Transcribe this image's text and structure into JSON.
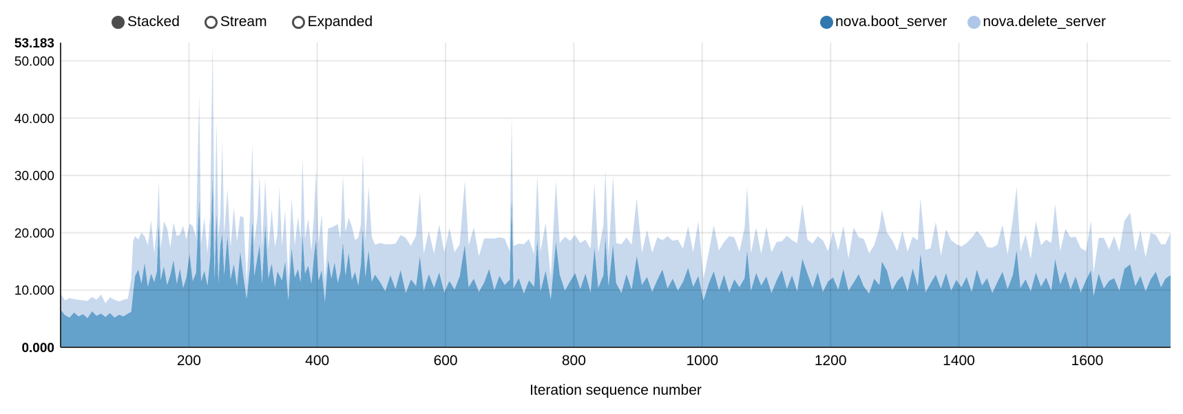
{
  "controls": {
    "items": [
      {
        "label": "Stacked",
        "selected": true
      },
      {
        "label": "Stream",
        "selected": false
      },
      {
        "label": "Expanded",
        "selected": false
      }
    ]
  },
  "legend": {
    "items": [
      {
        "label": "nova.boot_server",
        "color": "#3178af"
      },
      {
        "label": "nova.delete_server",
        "color": "#aec7e8"
      }
    ]
  },
  "chart_data": {
    "type": "area",
    "stacked": true,
    "title": "",
    "xlabel": "Iteration sequence number",
    "ylabel": "",
    "xlim": [
      0,
      1730
    ],
    "ylim": [
      0,
      53.183
    ],
    "grid": true,
    "legend_position": "top-right",
    "x_ticks": [
      200,
      400,
      600,
      800,
      1000,
      1200,
      1400,
      1600
    ],
    "y_ticks": [
      {
        "value": 0,
        "label": "0.000",
        "bold": true,
        "grid": false
      },
      {
        "value": 10,
        "label": "10.000",
        "bold": false,
        "grid": true
      },
      {
        "value": 20,
        "label": "20.000",
        "bold": false,
        "grid": true
      },
      {
        "value": 30,
        "label": "30.000",
        "bold": false,
        "grid": true
      },
      {
        "value": 40,
        "label": "40.000",
        "bold": false,
        "grid": true
      },
      {
        "value": 50,
        "label": "50.000",
        "bold": false,
        "grid": true
      },
      {
        "value": 53.183,
        "label": "53.183",
        "bold": true,
        "grid": false
      }
    ],
    "series_names": [
      "nova.boot_server",
      "nova.delete_server"
    ],
    "area_colors": [
      "#64a1cb",
      "#c8d9ee"
    ],
    "max_total": 53.183,
    "points_format": [
      "iteration",
      "nova.boot_server",
      "nova.delete_server"
    ],
    "points": [
      [
        0,
        6.6,
        2.8
      ],
      [
        7,
        5.6,
        2.6
      ],
      [
        14,
        5.2,
        3.4
      ],
      [
        21,
        6.1,
        2.3
      ],
      [
        28,
        5.4,
        2.9
      ],
      [
        35,
        5.8,
        2.4
      ],
      [
        42,
        5.1,
        3.0
      ],
      [
        49,
        6.3,
        2.5
      ],
      [
        56,
        5.5,
        2.8
      ],
      [
        63,
        5.9,
        3.3
      ],
      [
        70,
        5.3,
        2.4
      ],
      [
        77,
        6.0,
        2.7
      ],
      [
        84,
        5.2,
        3.1
      ],
      [
        91,
        5.7,
        2.3
      ],
      [
        98,
        5.4,
        2.9
      ],
      [
        105,
        5.9,
        2.6
      ],
      [
        110,
        6.2,
        5.8
      ],
      [
        113,
        9.5,
        9.0
      ],
      [
        116,
        12.4,
        7.0
      ],
      [
        121,
        13.6,
        5.2
      ],
      [
        126,
        11.2,
        8.8
      ],
      [
        131,
        14.8,
        4.6
      ],
      [
        136,
        10.6,
        7.2
      ],
      [
        141,
        12.9,
        9.3
      ],
      [
        146,
        11.4,
        5.0
      ],
      [
        150,
        13.2,
        7.6
      ],
      [
        153,
        22.0,
        7.0
      ],
      [
        156,
        11.8,
        5.4
      ],
      [
        161,
        14.2,
        7.8
      ],
      [
        166,
        10.9,
        9.9
      ],
      [
        171,
        12.6,
        4.8
      ],
      [
        176,
        15.3,
        6.5
      ],
      [
        181,
        11.1,
        8.3
      ],
      [
        186,
        13.8,
        5.9
      ],
      [
        191,
        10.4,
        10.8
      ],
      [
        196,
        12.2,
        6.6
      ],
      [
        201,
        16.4,
        5.2
      ],
      [
        206,
        11.6,
        9.6
      ],
      [
        211,
        13.0,
        6.2
      ],
      [
        216,
        26.0,
        18.0
      ],
      [
        219,
        11.5,
        6.7
      ],
      [
        224,
        13.4,
        9.2
      ],
      [
        229,
        10.8,
        5.6
      ],
      [
        233,
        15.6,
        7.4
      ],
      [
        237,
        30.0,
        23.2
      ],
      [
        240,
        12.0,
        6.4
      ],
      [
        243,
        24.0,
        15.5
      ],
      [
        246,
        11.3,
        8.1
      ],
      [
        249,
        17.8,
        5.3
      ],
      [
        252,
        20.0,
        16.0
      ],
      [
        255,
        12.7,
        6.9
      ],
      [
        260,
        19.6,
        8.0
      ],
      [
        265,
        11.9,
        5.5
      ],
      [
        270,
        14.6,
        9.8
      ],
      [
        275,
        10.7,
        7.7
      ],
      [
        280,
        16.8,
        6.1
      ],
      [
        285,
        12.3,
        10.4
      ],
      [
        290,
        8.5,
        2.5
      ],
      [
        295,
        13.9,
        8.6
      ],
      [
        299,
        22.5,
        13.0
      ],
      [
        302,
        12.5,
        5.8
      ],
      [
        307,
        15.9,
        7.1
      ],
      [
        310,
        18.0,
        12.0
      ],
      [
        314,
        11.2,
        6.3
      ],
      [
        319,
        21.5,
        7.9
      ],
      [
        324,
        12.1,
        5.1
      ],
      [
        329,
        14.7,
        9.4
      ],
      [
        334,
        10.5,
        7.0
      ],
      [
        338,
        13.3,
        6.5
      ],
      [
        341,
        12.6,
        15.4
      ],
      [
        345,
        11.7,
        5.9
      ],
      [
        350,
        15.1,
        8.7
      ],
      [
        355,
        8.2,
        3.3
      ],
      [
        360,
        17.5,
        8.5
      ],
      [
        365,
        12.2,
        5.6
      ],
      [
        370,
        13.7,
        9.1
      ],
      [
        374,
        11.4,
        7.5
      ],
      [
        377,
        20.0,
        13.0
      ],
      [
        381,
        12.9,
        6.0
      ],
      [
        386,
        14.3,
        8.2
      ],
      [
        391,
        11.1,
        5.7
      ],
      [
        395,
        16.1,
        7.3
      ],
      [
        398,
        19.0,
        12.0
      ],
      [
        402,
        11.6,
        6.6
      ],
      [
        407,
        13.5,
        9.7
      ],
      [
        412,
        8.0,
        3.5
      ],
      [
        417,
        15.4,
        5.4
      ],
      [
        422,
        12.0,
        8.9
      ],
      [
        427,
        14.9,
        6.3
      ],
      [
        432,
        11.3,
        10.2
      ],
      [
        436,
        13.1,
        5.8
      ],
      [
        440,
        18.5,
        11.5
      ],
      [
        444,
        12.5,
        7.6
      ],
      [
        449,
        16.6,
        6.0
      ],
      [
        454,
        11.8,
        9.3
      ],
      [
        459,
        13.2,
        5.5
      ],
      [
        464,
        10.8,
        8.4
      ],
      [
        468,
        14.5,
        6.9
      ],
      [
        471,
        21.0,
        13.0
      ],
      [
        475,
        12.3,
        6.1
      ],
      [
        480,
        17.0,
        11.0
      ],
      [
        485,
        11.5,
        7.8
      ],
      [
        490,
        12.7,
        5.2
      ],
      [
        498,
        11.4,
        6.8
      ],
      [
        506,
        9.8,
        8.2
      ],
      [
        514,
        12.6,
        5.4
      ],
      [
        522,
        10.2,
        7.9
      ],
      [
        530,
        13.5,
        6.1
      ],
      [
        538,
        9.5,
        9.6
      ],
      [
        546,
        11.9,
        5.8
      ],
      [
        554,
        10.7,
        8.8
      ],
      [
        560,
        16.0,
        11.0
      ],
      [
        566,
        9.9,
        6.4
      ],
      [
        574,
        12.8,
        7.5
      ],
      [
        582,
        10.4,
        5.9
      ],
      [
        590,
        13.1,
        8.3
      ],
      [
        598,
        9.6,
        7.0
      ],
      [
        606,
        11.6,
        9.2
      ],
      [
        614,
        10.1,
        6.5
      ],
      [
        622,
        12.4,
        5.6
      ],
      [
        630,
        18.0,
        11.0
      ],
      [
        636,
        10.5,
        7.3
      ],
      [
        644,
        12.0,
        8.9
      ],
      [
        652,
        9.7,
        6.2
      ],
      [
        660,
        11.3,
        7.7
      ],
      [
        668,
        13.7,
        5.3
      ],
      [
        676,
        10.0,
        9.0
      ],
      [
        684,
        12.5,
        6.7
      ],
      [
        692,
        10.9,
        8.1
      ],
      [
        700,
        11.8,
        5.0
      ],
      [
        703,
        27.0,
        13.3
      ],
      [
        706,
        10.3,
        7.4
      ],
      [
        714,
        12.1,
        6.0
      ],
      [
        722,
        9.4,
        8.6
      ],
      [
        730,
        11.7,
        7.2
      ],
      [
        738,
        10.6,
        5.7
      ],
      [
        743,
        19.0,
        11.0
      ],
      [
        748,
        9.8,
        6.9
      ],
      [
        756,
        13.4,
        8.4
      ],
      [
        764,
        8.4,
        3.6
      ],
      [
        772,
        18.5,
        10.5
      ],
      [
        778,
        12.7,
        5.5
      ],
      [
        786,
        9.9,
        9.4
      ],
      [
        794,
        11.5,
        7.1
      ],
      [
        802,
        13.0,
        6.6
      ],
      [
        810,
        10.2,
        8.0
      ],
      [
        818,
        12.9,
        5.9
      ],
      [
        826,
        9.6,
        7.6
      ],
      [
        832,
        17.5,
        11.0
      ],
      [
        838,
        10.4,
        6.1
      ],
      [
        846,
        12.6,
        8.7
      ],
      [
        849,
        19.5,
        11.5
      ],
      [
        854,
        10.7,
        5.2
      ],
      [
        861,
        18.0,
        12.0
      ],
      [
        866,
        11.2,
        7.0
      ],
      [
        874,
        9.5,
        8.5
      ],
      [
        882,
        12.8,
        6.4
      ],
      [
        890,
        10.1,
        7.8
      ],
      [
        898,
        16.0,
        10.0
      ],
      [
        906,
        10.9,
        5.6
      ],
      [
        914,
        12.3,
        8.2
      ],
      [
        922,
        9.7,
        6.8
      ],
      [
        930,
        11.8,
        7.4
      ],
      [
        938,
        13.6,
        5.1
      ],
      [
        946,
        10.3,
        9.1
      ],
      [
        954,
        12.0,
        6.6
      ],
      [
        962,
        9.9,
        8.9
      ],
      [
        970,
        11.4,
        5.8
      ],
      [
        978,
        13.9,
        7.2
      ],
      [
        986,
        10.6,
        6.0
      ],
      [
        994,
        12.5,
        9.5
      ],
      [
        1002,
        8.2,
        3.8
      ],
      [
        1010,
        11.1,
        5.4
      ],
      [
        1018,
        13.3,
        8.0
      ],
      [
        1026,
        10.0,
        6.9
      ],
      [
        1034,
        12.7,
        5.7
      ],
      [
        1042,
        9.6,
        9.8
      ],
      [
        1050,
        11.9,
        7.3
      ],
      [
        1058,
        10.5,
        6.2
      ],
      [
        1066,
        12.1,
        8.8
      ],
      [
        1070,
        17.0,
        11.0
      ],
      [
        1076,
        9.9,
        6.5
      ],
      [
        1084,
        13.0,
        7.9
      ],
      [
        1092,
        10.8,
        5.5
      ],
      [
        1100,
        12.4,
        8.6
      ],
      [
        1108,
        9.5,
        7.1
      ],
      [
        1116,
        11.7,
        6.7
      ],
      [
        1124,
        13.5,
        5.0
      ],
      [
        1132,
        10.2,
        9.3
      ],
      [
        1140,
        12.6,
        6.1
      ],
      [
        1148,
        9.8,
        8.4
      ],
      [
        1156,
        15.5,
        9.5
      ],
      [
        1164,
        12.9,
        5.9
      ],
      [
        1172,
        10.4,
        7.7
      ],
      [
        1180,
        13.1,
        6.3
      ],
      [
        1188,
        9.7,
        9.0
      ],
      [
        1196,
        11.5,
        5.3
      ],
      [
        1204,
        12.2,
        8.1
      ],
      [
        1212,
        10.1,
        6.8
      ],
      [
        1220,
        13.7,
        7.5
      ],
      [
        1228,
        9.9,
        5.6
      ],
      [
        1236,
        11.3,
        9.6
      ],
      [
        1244,
        12.8,
        6.4
      ],
      [
        1252,
        10.6,
        8.3
      ],
      [
        1260,
        9.4,
        7.0
      ],
      [
        1268,
        12.0,
        5.8
      ],
      [
        1276,
        10.9,
        9.9
      ],
      [
        1280,
        15.0,
        9.0
      ],
      [
        1288,
        13.4,
        6.6
      ],
      [
        1296,
        10.0,
        8.7
      ],
      [
        1304,
        11.6,
        5.2
      ],
      [
        1312,
        12.5,
        7.8
      ],
      [
        1320,
        9.8,
        6.9
      ],
      [
        1328,
        13.8,
        5.5
      ],
      [
        1336,
        10.7,
        8.0
      ],
      [
        1340,
        16.5,
        9.5
      ],
      [
        1348,
        9.6,
        7.4
      ],
      [
        1356,
        11.2,
        6.1
      ],
      [
        1364,
        12.7,
        9.2
      ],
      [
        1372,
        10.3,
        5.7
      ],
      [
        1380,
        13.0,
        7.6
      ],
      [
        1388,
        9.9,
        8.8
      ],
      [
        1396,
        11.8,
        6.2
      ],
      [
        1404,
        10.5,
        7.1
      ],
      [
        1412,
        12.3,
        5.9
      ],
      [
        1420,
        9.7,
        9.4
      ],
      [
        1428,
        13.6,
        6.7
      ],
      [
        1436,
        10.8,
        8.5
      ],
      [
        1444,
        12.1,
        5.4
      ],
      [
        1452,
        9.5,
        7.9
      ],
      [
        1460,
        11.4,
        6.5
      ],
      [
        1468,
        13.2,
        8.2
      ],
      [
        1476,
        10.2,
        6.0
      ],
      [
        1484,
        12.6,
        9.7
      ],
      [
        1490,
        17.0,
        11.0
      ],
      [
        1496,
        10.4,
        6.3
      ],
      [
        1504,
        11.9,
        7.8
      ],
      [
        1512,
        9.8,
        5.6
      ],
      [
        1520,
        13.1,
        8.9
      ],
      [
        1528,
        10.6,
        7.2
      ],
      [
        1536,
        12.2,
        6.6
      ],
      [
        1544,
        9.9,
        8.3
      ],
      [
        1550,
        15.5,
        9.5
      ],
      [
        1558,
        11.0,
        5.8
      ],
      [
        1566,
        13.3,
        7.4
      ],
      [
        1574,
        10.1,
        9.1
      ],
      [
        1582,
        12.4,
        6.9
      ],
      [
        1590,
        9.6,
        7.7
      ],
      [
        1598,
        11.7,
        5.1
      ],
      [
        1606,
        13.5,
        8.6
      ],
      [
        1610,
        9.0,
        4.0
      ],
      [
        1618,
        12.9,
        6.2
      ],
      [
        1626,
        10.3,
        8.8
      ],
      [
        1634,
        11.6,
        5.5
      ],
      [
        1642,
        12.1,
        7.3
      ],
      [
        1650,
        9.9,
        6.8
      ],
      [
        1658,
        13.7,
        8.4
      ],
      [
        1667,
        14.5,
        9.0
      ],
      [
        1675,
        10.7,
        6.1
      ],
      [
        1683,
        12.5,
        7.9
      ],
      [
        1691,
        9.8,
        5.9
      ],
      [
        1699,
        11.9,
        8.1
      ],
      [
        1707,
        13.2,
        6.4
      ],
      [
        1715,
        10.5,
        7.5
      ],
      [
        1722,
        12.0,
        6.0
      ],
      [
        1730,
        12.6,
        7.4
      ]
    ]
  }
}
